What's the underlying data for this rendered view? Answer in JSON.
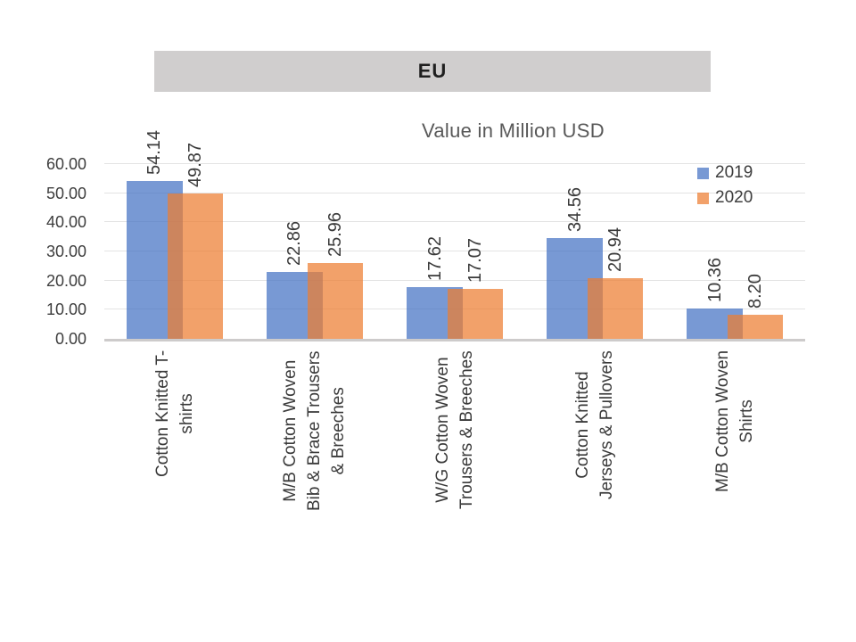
{
  "slide": {
    "title": "EU",
    "subtitle": "Value in Million USD"
  },
  "colors": {
    "banner_bg": "#d0cece",
    "series_2019": "rgba(68,114,196,0.72)",
    "series_2020": "rgba(237,125,49,0.72)",
    "gridline": "#e3e3e3",
    "axis_line": "#cdcbcb",
    "text_dark": "#3a3a3a",
    "subtitle_text": "#595959"
  },
  "chart_data": {
    "type": "bar",
    "title": "EU",
    "subtitle": "Value in Million USD",
    "categories": [
      "Cotton Knitted  T-\nshirts",
      "M/B Cotton Woven\nBib & Brace Trousers\n& Breeches",
      "W/G Cotton Woven\nTrousers & Breeches",
      "Cotton Knitted\nJerseys & Pullovers",
      "M/B Cotton Woven\nShirts"
    ],
    "series": [
      {
        "name": "2019",
        "color": "rgba(68,114,196,0.72)",
        "values": [
          54.14,
          22.86,
          17.62,
          34.56,
          10.36
        ]
      },
      {
        "name": "2020",
        "color": "rgba(237,125,49,0.72)",
        "values": [
          49.87,
          25.96,
          17.07,
          20.94,
          8.2
        ]
      }
    ],
    "ylim": [
      0,
      60
    ],
    "ytick_step": 10,
    "ytick_decimals": 2,
    "data_label_decimals": 2,
    "grid": true,
    "legend_position": "top-right",
    "bar_overlap_pct": 27,
    "data_labels_rotated": true,
    "category_labels_rotated": true
  }
}
